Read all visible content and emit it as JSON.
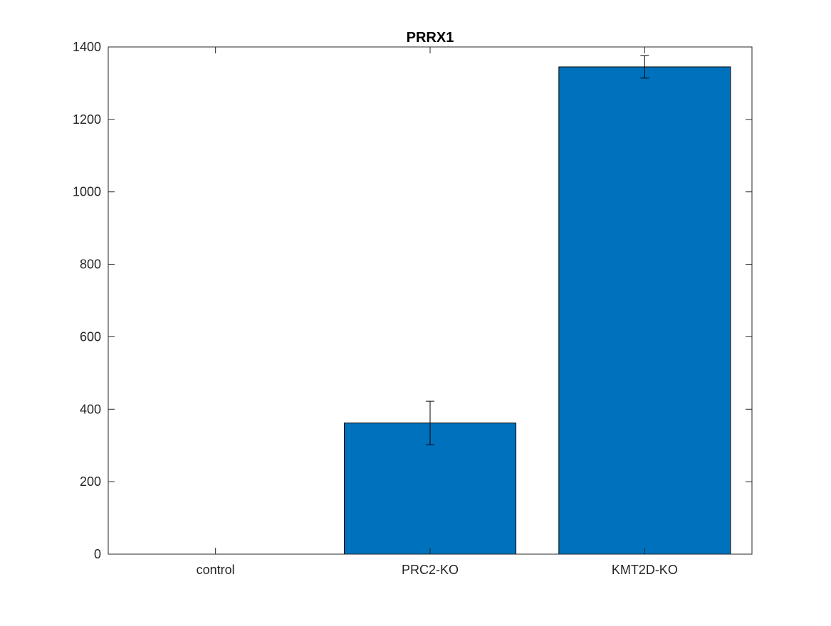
{
  "chart_data": {
    "type": "bar",
    "title": "PRRX1",
    "xlabel": "",
    "ylabel": "",
    "categories": [
      "control",
      "PRC2-KO",
      "KMT2D-KO"
    ],
    "values": [
      0,
      362,
      1345
    ],
    "errors": [
      0,
      60,
      31
    ],
    "ylim": [
      0,
      1400
    ],
    "yticks": [
      0,
      200,
      400,
      600,
      800,
      1000,
      1200,
      1400
    ],
    "ytick_labels": [
      "0",
      "200",
      "400",
      "600",
      "800",
      "1000",
      "1200",
      "1400"
    ],
    "grid": false,
    "legend": "none",
    "colors": {
      "bar_fill": "#0072BD",
      "bar_edge": "#000000",
      "axis": "#262626",
      "error_bar": "#000000"
    }
  }
}
